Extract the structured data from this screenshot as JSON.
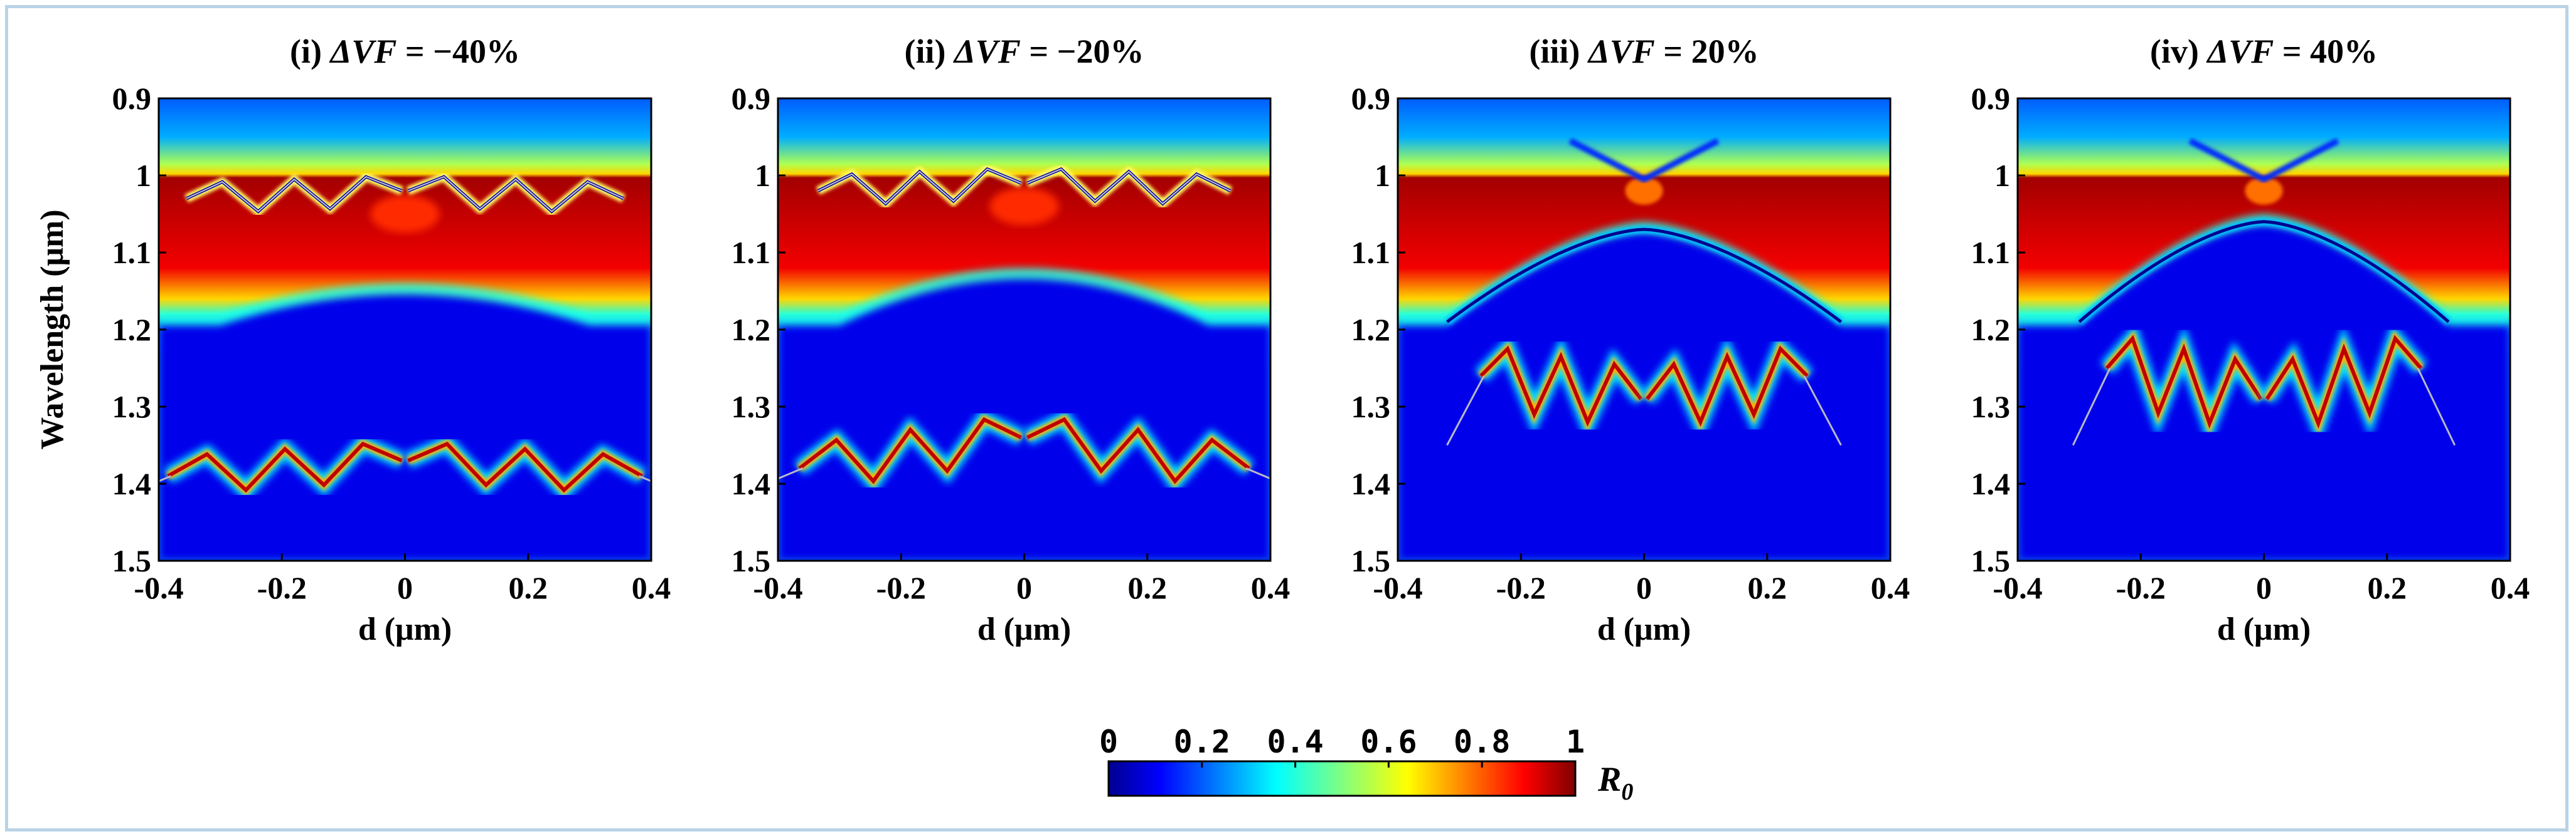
{
  "colors": {
    "frame": "#b9d3e6",
    "axis": "#000000"
  },
  "chart_data": [
    {
      "type": "heatmap",
      "title": "(i) ΔVF = −40%",
      "title_prefix": "(i) ",
      "title_var": "ΔVF",
      "title_rest": " = −40%",
      "xlabel": "d (μm)",
      "ylabel": "Wavelength (μm)",
      "xlim": [
        -0.4,
        0.4
      ],
      "ylim": [
        0.9,
        1.5
      ],
      "xticks": [
        -0.4,
        -0.2,
        0,
        0.2,
        0.4
      ],
      "xtick_labels": [
        "-0.4",
        "-0.2",
        "0",
        "0.2",
        "0.4"
      ],
      "yticks": [
        0.9,
        1,
        1.1,
        1.2,
        1.3,
        1.4,
        1.5
      ],
      "ytick_labels": [
        "0.9",
        "1",
        "1.1",
        "1.2",
        "1.3",
        "1.4",
        "1.5"
      ],
      "band_edge_top": 1.0,
      "band_edge_bottom": 1.14,
      "band_edge_bottom_ends": 1.18,
      "upper_mode": {
        "center": 1.04,
        "edge": 1.06,
        "d_extent": 0.35,
        "zigzag_amp": 0.02
      },
      "lower_mode": {
        "center": 1.37,
        "edge": 1.39,
        "d_extent": 0.38,
        "zigzag_amp": 0.025,
        "lifted": true
      }
    },
    {
      "type": "heatmap",
      "title": "(ii) ΔVF = −20%",
      "title_prefix": "(ii) ",
      "title_var": "ΔVF",
      "title_rest": " = −20%",
      "xlabel": "d (μm)",
      "ylabel": "",
      "xlim": [
        -0.4,
        0.4
      ],
      "ylim": [
        0.9,
        1.5
      ],
      "xticks": [
        -0.4,
        -0.2,
        0,
        0.2,
        0.4
      ],
      "xtick_labels": [
        "-0.4",
        "-0.2",
        "0",
        "0.2",
        "0.4"
      ],
      "yticks": [
        0.9,
        1,
        1.1,
        1.2,
        1.3,
        1.4,
        1.5
      ],
      "ytick_labels": [
        "0.9",
        "1",
        "1.1",
        "1.2",
        "1.3",
        "1.4",
        "1.5"
      ],
      "band_edge_top": 1.0,
      "band_edge_bottom": 1.12,
      "band_edge_bottom_ends": 1.18,
      "upper_mode": {
        "center": 1.03,
        "edge": 1.05,
        "d_extent": 0.33,
        "zigzag_amp": 0.02
      },
      "lower_mode": {
        "center": 1.34,
        "edge": 1.38,
        "d_extent": 0.36,
        "zigzag_amp": 0.03,
        "lifted": true
      }
    },
    {
      "type": "heatmap",
      "title": "(iii) ΔVF = 20%",
      "title_prefix": "(iii) ",
      "title_var": "ΔVF",
      "title_rest": " = 20%",
      "xlabel": "d (μm)",
      "ylabel": "",
      "xlim": [
        -0.4,
        0.4
      ],
      "ylim": [
        0.9,
        1.5
      ],
      "xticks": [
        -0.4,
        -0.2,
        0,
        0.2,
        0.4
      ],
      "xtick_labels": [
        "-0.4",
        "-0.2",
        "0",
        "0.2",
        "0.4"
      ],
      "yticks": [
        0.9,
        1,
        1.1,
        1.2,
        1.3,
        1.4,
        1.5
      ],
      "ytick_labels": [
        "0.9",
        "1",
        "1.1",
        "1.2",
        "1.3",
        "1.4",
        "1.5"
      ],
      "band_edge_top": 1.0,
      "band_edge_bottom": 1.06,
      "band_edge_bottom_ends": 1.18,
      "arch_width": 0.32,
      "notch_center": 1.02,
      "lower_mode": {
        "center": 1.29,
        "edge": 1.26,
        "d_extent": 0.26,
        "zigzag_amp": 0.04,
        "lifted": false
      },
      "tail_end": 1.35
    },
    {
      "type": "heatmap",
      "title": "(iv) ΔVF = 40%",
      "title_prefix": "(iv) ",
      "title_var": "ΔVF",
      "title_rest": " = 40%",
      "xlabel": "d (μm)",
      "ylabel": "",
      "xlim": [
        -0.4,
        0.4
      ],
      "ylim": [
        0.9,
        1.5
      ],
      "xticks": [
        -0.4,
        -0.2,
        0,
        0.2,
        0.4
      ],
      "xtick_labels": [
        "-0.4",
        "-0.2",
        "0",
        "0.2",
        "0.4"
      ],
      "yticks": [
        0.9,
        1,
        1.1,
        1.2,
        1.3,
        1.4,
        1.5
      ],
      "ytick_labels": [
        "0.9",
        "1",
        "1.1",
        "1.2",
        "1.3",
        "1.4",
        "1.5"
      ],
      "band_edge_top": 1.0,
      "band_edge_bottom": 1.05,
      "band_edge_bottom_ends": 1.18,
      "arch_width": 0.3,
      "notch_center": 1.02,
      "lower_mode": {
        "center": 1.29,
        "edge": 1.25,
        "d_extent": 0.25,
        "zigzag_amp": 0.045,
        "lifted": false
      },
      "tail_end": 1.35
    }
  ],
  "colorbar": {
    "range": [
      0,
      1
    ],
    "ticks": [
      0,
      0.2,
      0.4,
      0.6,
      0.8,
      1
    ],
    "tick_labels": [
      "0",
      "0.2",
      "0.4",
      "0.6",
      "0.8",
      "1"
    ],
    "label_base": "R",
    "label_sub": "0",
    "colormap": "jet"
  }
}
